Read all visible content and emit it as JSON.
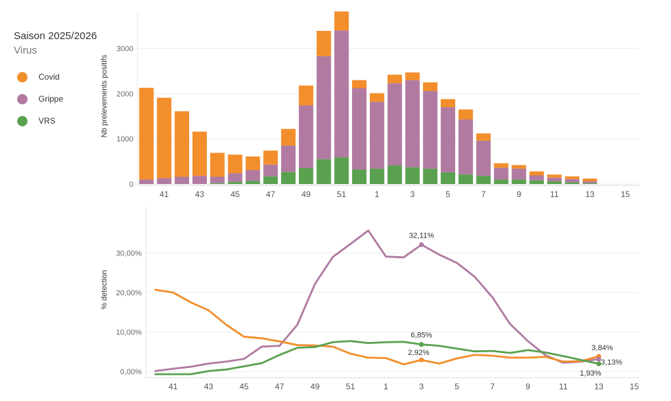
{
  "legend": {
    "season": "Saison 2025/2026",
    "subtitle": "Virus",
    "items": [
      {
        "label": "Covid",
        "color": "#F28E2B"
      },
      {
        "label": "Grippe",
        "color": "#B07AA1"
      },
      {
        "label": "VRS",
        "color": "#59A14F"
      }
    ]
  },
  "chart_data": [
    {
      "type": "bar",
      "stacked": true,
      "ylabel": "Nb prelevements positifs",
      "ylim": [
        0,
        3800
      ],
      "yticks": [
        0,
        1000,
        2000,
        3000
      ],
      "ytick_labels": [
        "0",
        "1000",
        "2000",
        "3000"
      ],
      "categories": [
        "40",
        "41",
        "42",
        "43",
        "44",
        "45",
        "46",
        "47",
        "48",
        "49",
        "50",
        "51",
        "52",
        "1",
        "2",
        "3",
        "4",
        "5",
        "6",
        "7",
        "8",
        "9",
        "10",
        "11",
        "12",
        "13",
        "14",
        "15"
      ],
      "xtick_labels": [
        "41",
        "43",
        "45",
        "47",
        "49",
        "51",
        "1",
        "3",
        "5",
        "7",
        "9",
        "11",
        "13",
        "15"
      ],
      "series": [
        {
          "name": "VRS",
          "color": "#59A14F",
          "values": [
            0,
            0,
            0,
            0,
            20,
            50,
            70,
            170,
            270,
            350,
            550,
            590,
            320,
            340,
            410,
            370,
            340,
            260,
            210,
            180,
            100,
            100,
            80,
            60,
            40,
            20,
            0,
            0
          ]
        },
        {
          "name": "Grippe",
          "color": "#B07AA1",
          "values": [
            100,
            130,
            160,
            180,
            140,
            190,
            240,
            260,
            580,
            1390,
            2280,
            2810,
            1800,
            1480,
            1820,
            1930,
            1720,
            1440,
            1220,
            780,
            260,
            240,
            110,
            80,
            70,
            40,
            0,
            0
          ]
        },
        {
          "name": "Covid",
          "color": "#F28E2B",
          "values": [
            2030,
            1780,
            1450,
            980,
            530,
            410,
            300,
            310,
            370,
            440,
            560,
            420,
            180,
            190,
            190,
            170,
            190,
            180,
            220,
            160,
            100,
            80,
            90,
            70,
            60,
            60,
            0,
            0
          ]
        }
      ]
    },
    {
      "type": "line",
      "ylabel": "% detection",
      "ylim": [
        0,
        36
      ],
      "yticks": [
        0,
        10,
        20,
        30
      ],
      "ytick_labels": [
        "0,00%",
        "10,00%",
        "20,00%",
        "30,00%"
      ],
      "x": [
        "40",
        "41",
        "42",
        "43",
        "44",
        "45",
        "46",
        "47",
        "48",
        "49",
        "50",
        "51",
        "52",
        "1",
        "2",
        "3",
        "4",
        "5",
        "6",
        "7",
        "8",
        "9",
        "10",
        "11",
        "12",
        "13"
      ],
      "xtick_labels": [
        "41",
        "43",
        "45",
        "47",
        "49",
        "51",
        "1",
        "3",
        "5",
        "7",
        "9",
        "11",
        "13",
        "15"
      ],
      "series": [
        {
          "name": "Grippe",
          "color": "#B07AA1",
          "values": [
            0.1,
            0.7,
            1.2,
            2.0,
            2.5,
            3.2,
            6.3,
            6.5,
            11.8,
            22.2,
            29.0,
            32.3,
            35.7,
            29.1,
            28.9,
            32.11,
            29.6,
            27.5,
            24.0,
            18.8,
            12.0,
            7.7,
            4.1,
            2.2,
            2.5,
            3.13
          ]
        },
        {
          "name": "Covid",
          "color": "#F28E2B",
          "values": [
            20.7,
            20.0,
            17.5,
            15.5,
            11.8,
            8.8,
            8.4,
            7.6,
            6.7,
            6.6,
            6.3,
            4.5,
            3.5,
            3.4,
            1.8,
            2.92,
            2.0,
            3.3,
            4.2,
            4.0,
            3.5,
            3.5,
            3.7,
            2.5,
            2.6,
            3.84
          ]
        },
        {
          "name": "VRS",
          "color": "#59A14F",
          "values": [
            -0.7,
            -0.7,
            -0.7,
            0.1,
            0.5,
            1.3,
            2.1,
            4.2,
            6.0,
            6.2,
            7.4,
            7.7,
            7.2,
            7.4,
            7.5,
            6.85,
            6.5,
            5.8,
            5.1,
            5.2,
            4.7,
            5.4,
            4.8,
            3.9,
            2.9,
            1.93
          ]
        }
      ],
      "annotations": [
        {
          "series": "Grippe",
          "x": "3",
          "text": "32,11%"
        },
        {
          "series": "VRS",
          "x": "3",
          "text": "6,85%"
        },
        {
          "series": "Covid",
          "x": "3",
          "text": "2,92%"
        },
        {
          "series": "Covid",
          "x": "13",
          "text": "3,84%"
        },
        {
          "series": "Grippe",
          "x": "13",
          "text": "3,13%"
        },
        {
          "series": "VRS",
          "x": "13",
          "text": "1,93%"
        }
      ]
    }
  ]
}
